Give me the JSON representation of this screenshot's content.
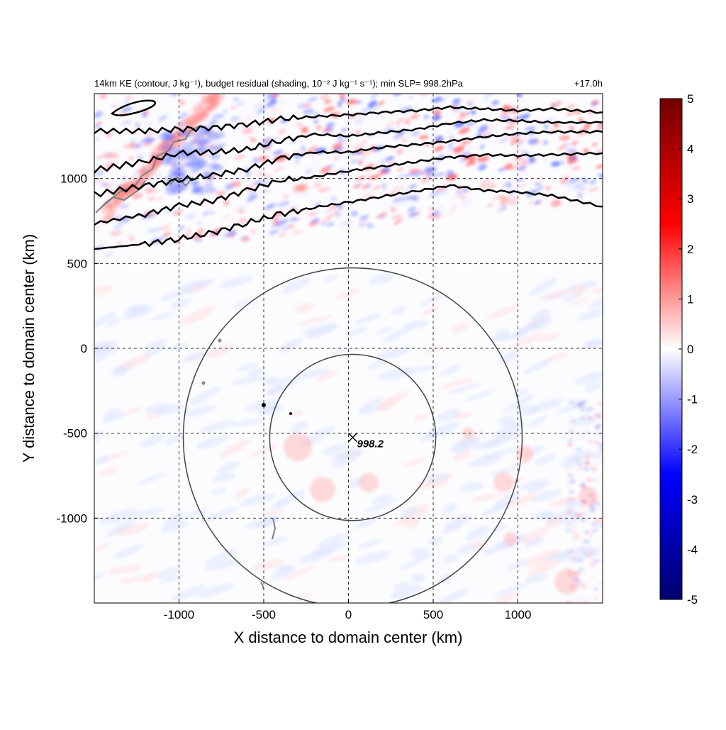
{
  "chart_data": {
    "type": "heatmap",
    "title_left": "14km KE (contour, J kg⁻¹), budget residual (shading, 10⁻² J kg⁻¹ s⁻¹); min SLP= 998.2hPa",
    "title_right": "+17.0h",
    "xlabel": "X distance to domain center (km)",
    "ylabel": "Y distance to domain center (km)",
    "xlim": [
      -1500,
      1500
    ],
    "ylim": [
      -1500,
      1500
    ],
    "x_ticks": [
      -1000,
      -500,
      0,
      500,
      1000
    ],
    "y_ticks": [
      1000,
      500,
      0,
      -500,
      -1000
    ],
    "grid": true,
    "colorbar": {
      "range": [
        -5,
        5
      ],
      "ticks": [
        5,
        4,
        3,
        2,
        1,
        0,
        -1,
        -2,
        -3,
        -4,
        -5
      ],
      "colors": [
        "#00006e",
        "#0000ff",
        "#ffffff",
        "#ff0000",
        "#720000"
      ]
    },
    "storm_center": {
      "x": 25,
      "y": -525,
      "label": "998.2"
    },
    "range_rings_km": [
      490,
      1000
    ],
    "ke_contours": [
      {
        "x": [
          -1500,
          -1200,
          -1000,
          -800,
          -600,
          -400,
          -200,
          0,
          200,
          400,
          600,
          800,
          1000,
          1200,
          1500
        ],
        "y": [
          585,
          615,
          645,
          680,
          740,
          790,
          830,
          860,
          895,
          925,
          960,
          930,
          920,
          900,
          835
        ]
      },
      {
        "x": [
          -1500,
          -1200,
          -1000,
          -800,
          -600,
          -400,
          -200,
          0,
          200,
          400,
          600,
          800,
          1000,
          1200,
          1500
        ],
        "y": [
          735,
          790,
          840,
          870,
          930,
          990,
          1010,
          1045,
          1070,
          1100,
          1125,
          1140,
          1135,
          1140,
          1150
        ]
      },
      {
        "x": [
          -1500,
          -1200,
          -1000,
          -800,
          -600,
          -400,
          -200,
          0,
          200,
          400,
          600,
          800,
          1000,
          1200,
          1500
        ],
        "y": [
          905,
          960,
          990,
          1020,
          1055,
          1120,
          1155,
          1155,
          1185,
          1200,
          1220,
          1245,
          1265,
          1275,
          1275
        ]
      },
      {
        "x": [
          -1500,
          -1200,
          -1000,
          -800,
          -600,
          -400,
          -200,
          0,
          200,
          400,
          600,
          800,
          1000,
          1200,
          1500
        ],
        "y": [
          1050,
          1100,
          1150,
          1155,
          1170,
          1225,
          1260,
          1250,
          1270,
          1290,
          1325,
          1345,
          1340,
          1330,
          1330
        ]
      },
      {
        "x": [
          -1500,
          -1200,
          -1000,
          -800,
          -600,
          -400,
          -200,
          0,
          200,
          400,
          600,
          800,
          1000,
          1200,
          1500
        ],
        "y": [
          1280,
          1280,
          1290,
          1300,
          1320,
          1350,
          1365,
          1375,
          1390,
          1400,
          1420,
          1410,
          1400,
          1410,
          1390
        ]
      }
    ]
  }
}
